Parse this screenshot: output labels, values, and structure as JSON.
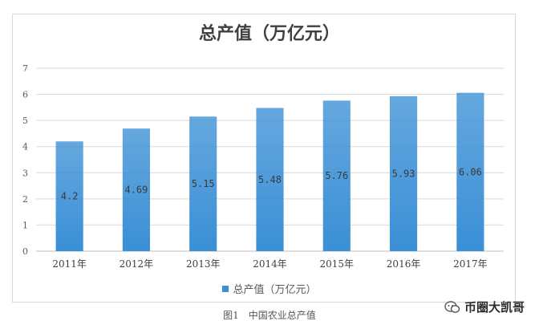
{
  "chart_data": {
    "type": "bar",
    "title": "总产值（万亿元）",
    "categories": [
      "2011年",
      "2012年",
      "2013年",
      "2014年",
      "2015年",
      "2016年",
      "2017年"
    ],
    "series": [
      {
        "name": "总产值（万亿元）",
        "values": [
          4.2,
          4.69,
          5.15,
          5.48,
          5.76,
          5.93,
          6.06
        ]
      }
    ],
    "data_labels": [
      "4.2",
      "4.69",
      "5.15",
      "5.48",
      "5.76",
      "5.93",
      "6.06"
    ],
    "y_ticks": [
      "0",
      "1",
      "2",
      "3",
      "4",
      "5",
      "6",
      "7"
    ],
    "ylim": [
      0,
      7
    ],
    "grid": true,
    "legend_position": "bottom",
    "bar_color": "#3a8fd6"
  },
  "caption": "图1　中国农业总产值",
  "watermark": "币圈大凯哥",
  "watermark_icon": "wechat-icon"
}
